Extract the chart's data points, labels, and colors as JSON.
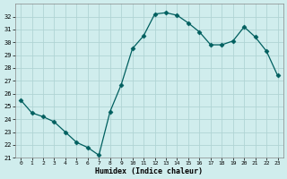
{
  "x": [
    0,
    1,
    2,
    3,
    4,
    5,
    6,
    7,
    8,
    9,
    10,
    11,
    12,
    13,
    14,
    15,
    16,
    17,
    18,
    19,
    20,
    21,
    22,
    23
  ],
  "y": [
    25.5,
    24.5,
    24.2,
    23.8,
    23.0,
    22.2,
    21.8,
    21.2,
    24.6,
    26.7,
    29.5,
    30.5,
    32.2,
    32.3,
    32.1,
    31.5,
    30.8,
    29.8,
    29.8,
    30.1,
    31.2,
    30.4,
    29.3,
    27.4
  ],
  "line_color": "#005f5f",
  "marker": "D",
  "marker_size": 2.5,
  "bg_color": "#d0eded",
  "grid_color": "#b0d4d4",
  "xlabel": "Humidex (Indice chaleur)",
  "ylim": [
    21,
    33
  ],
  "xlim": [
    -0.5,
    23.5
  ],
  "yticks": [
    21,
    22,
    23,
    24,
    25,
    26,
    27,
    28,
    29,
    30,
    31,
    32
  ],
  "xticks": [
    0,
    1,
    2,
    3,
    4,
    5,
    6,
    7,
    8,
    9,
    10,
    11,
    12,
    13,
    14,
    15,
    16,
    17,
    18,
    19,
    20,
    21,
    22,
    23
  ]
}
